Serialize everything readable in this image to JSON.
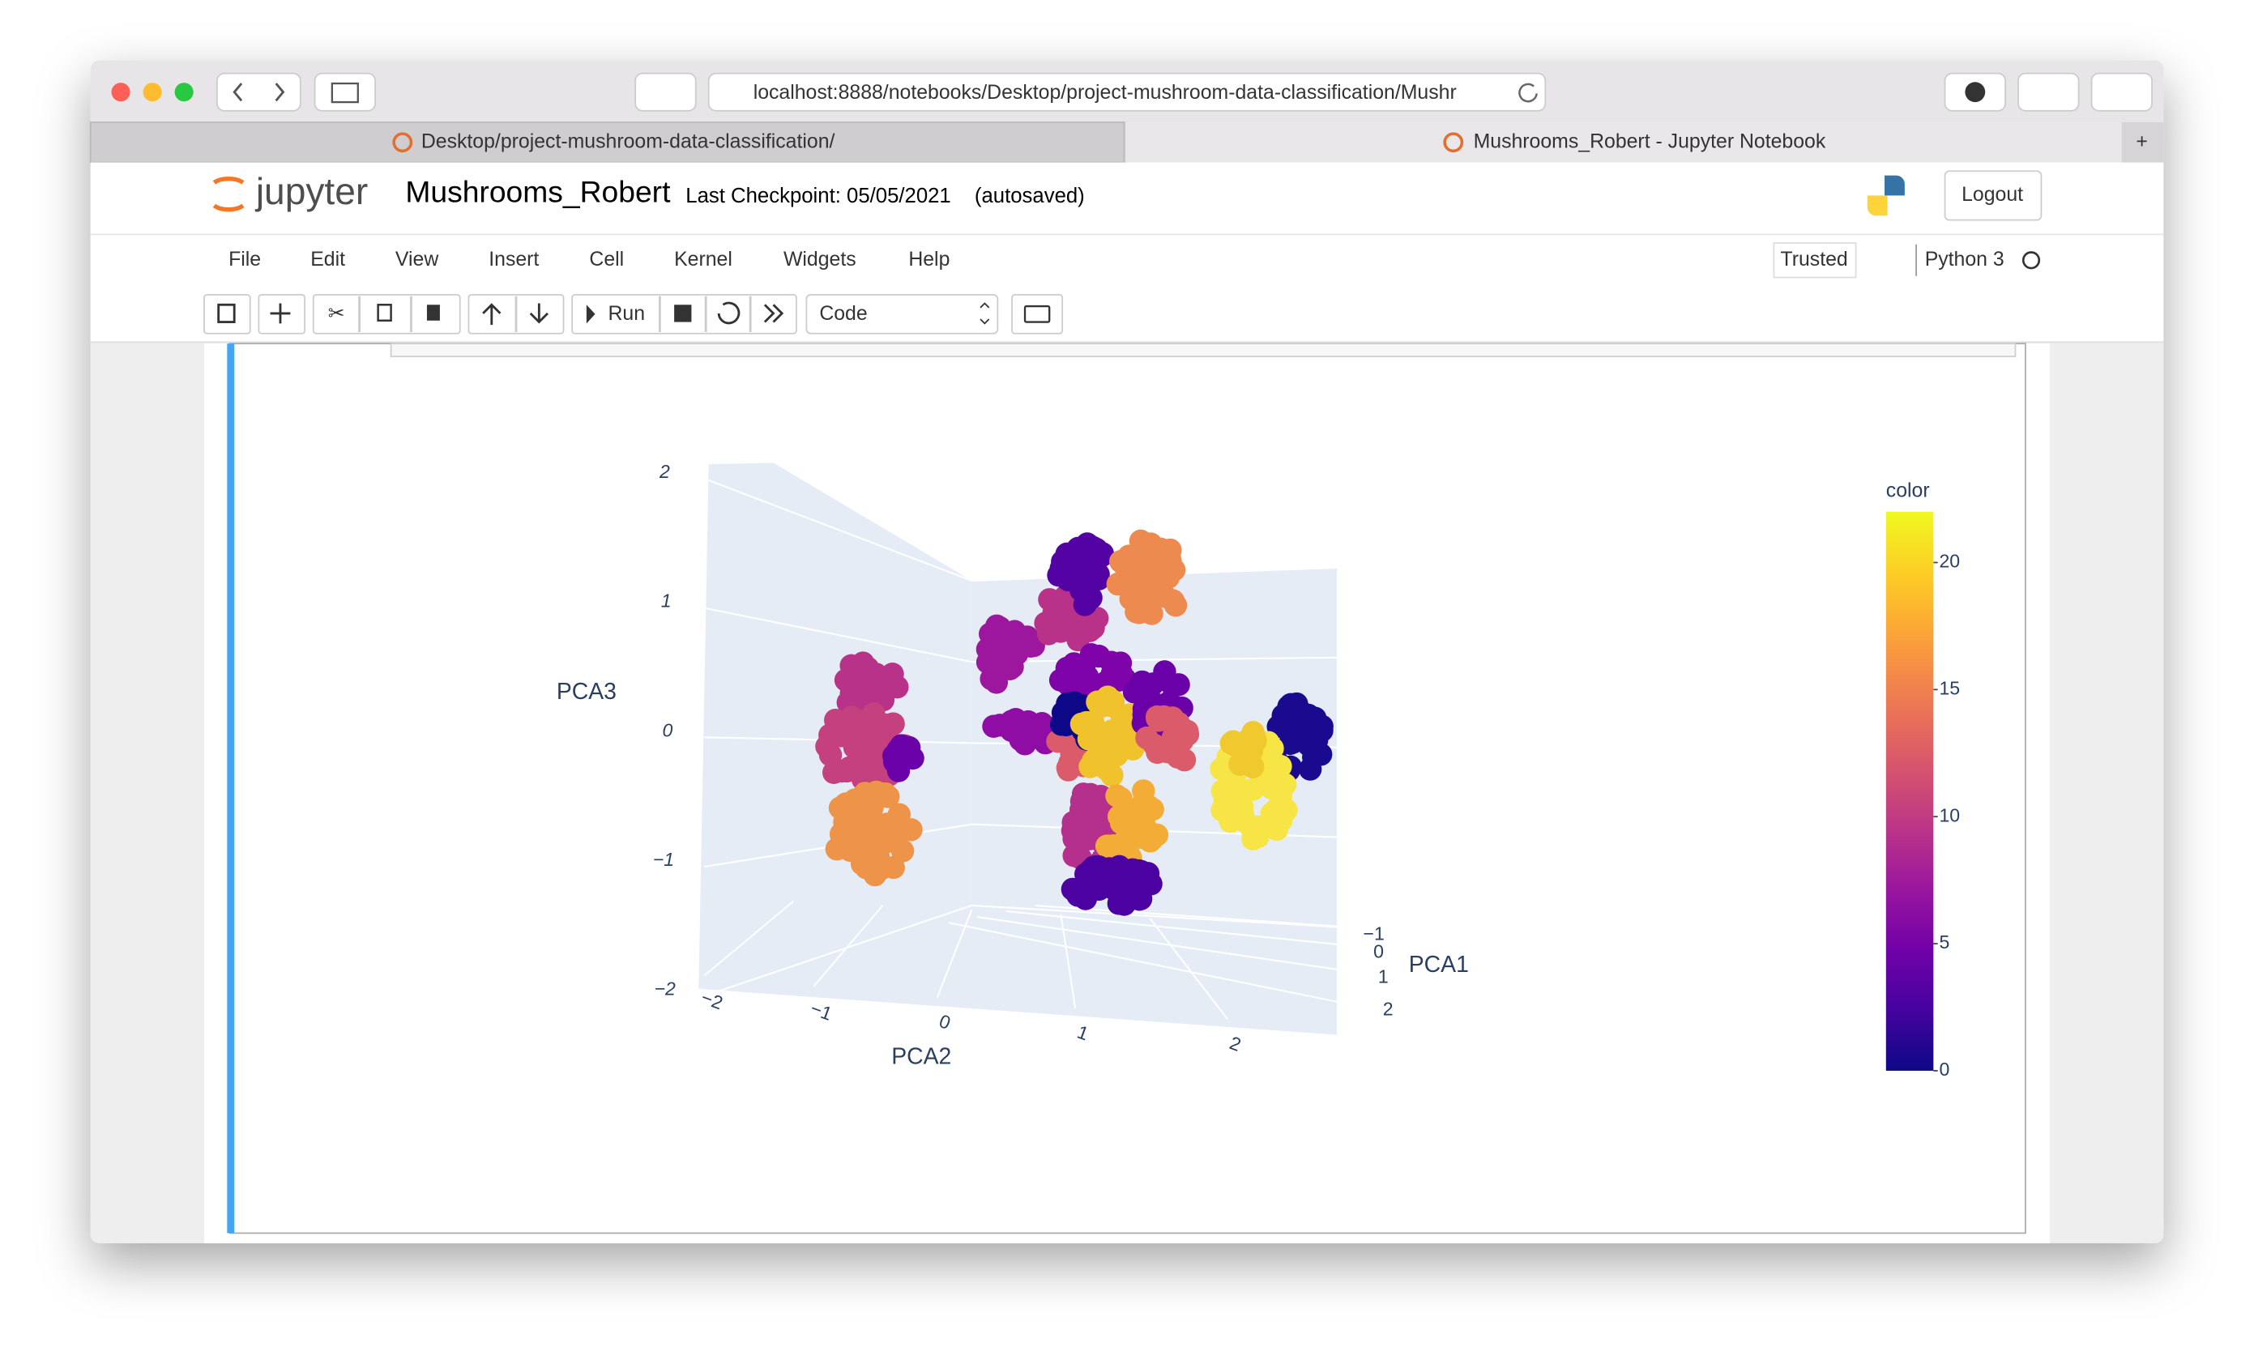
{
  "browser": {
    "url": "localhost:8888/notebooks/Desktop/project-mushroom-data-classification/Mushr",
    "tabs": [
      "Desktop/project-mushroom-data-classification/",
      "Mushrooms_Robert - Jupyter Notebook"
    ]
  },
  "header": {
    "logo": "jupyter",
    "notebook_name": "Mushrooms_Robert",
    "checkpoint": "Last Checkpoint: 05/05/2021",
    "autosave": "(autosaved)",
    "logout": "Logout"
  },
  "menu": {
    "items": [
      "File",
      "Edit",
      "View",
      "Insert",
      "Cell",
      "Kernel",
      "Widgets",
      "Help"
    ],
    "trusted": "Trusted",
    "kernel": "Python 3"
  },
  "toolbar": {
    "run": "Run",
    "cell_type": "Code"
  },
  "chart_data": {
    "type": "scatter3d",
    "xaxis_title": "PCA1",
    "yaxis_title": "PCA2",
    "zaxis_title": "PCA3",
    "xticks": [
      {
        "value": -1,
        "label": "−1"
      },
      0,
      1,
      2
    ],
    "yticks": [
      {
        "value": -2,
        "label": "−2"
      },
      {
        "value": -1,
        "label": "−1"
      },
      0,
      1,
      2
    ],
    "zticks": [
      {
        "value": -2,
        "label": "−2"
      },
      {
        "value": -1,
        "label": "−1"
      },
      0,
      1,
      2
    ],
    "colorbar": {
      "title": "color",
      "lim": [
        0,
        22
      ],
      "ticks": [
        0,
        5,
        10,
        15,
        20
      ]
    }
  }
}
